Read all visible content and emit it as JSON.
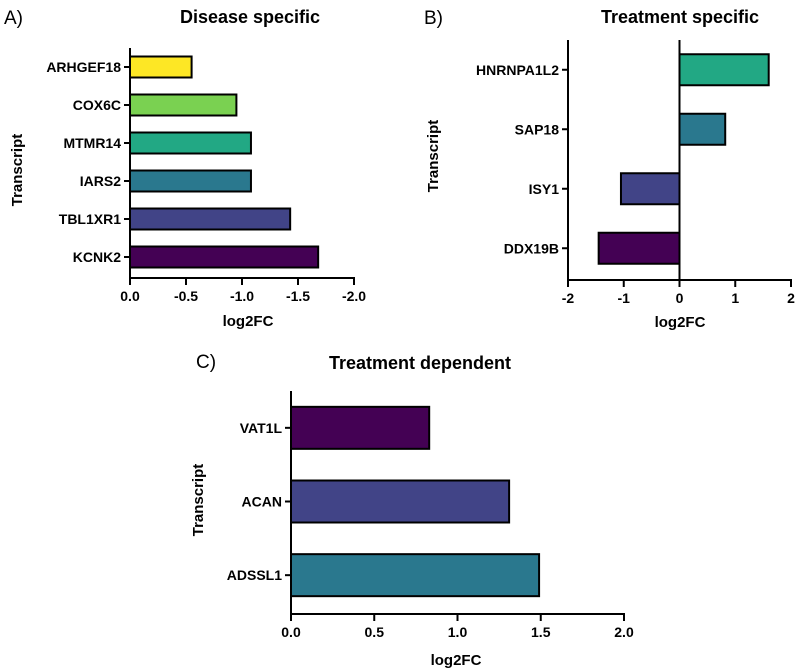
{
  "chart_data": [
    {
      "panel": "A)",
      "type": "bar",
      "orientation": "horizontal",
      "title": "Disease specific",
      "xlabel": "log2FC",
      "ylabel": "Transcript",
      "categories": [
        "ARHGEF18",
        "COX6C",
        "MTMR14",
        "IARS2",
        "TBL1XR1",
        "KCNK2"
      ],
      "values": [
        -0.55,
        -0.95,
        -1.08,
        -1.08,
        -1.43,
        -1.68
      ],
      "colors": [
        "#fde725",
        "#7ad151",
        "#22a884",
        "#2a788e",
        "#414487",
        "#440154"
      ],
      "xlim": [
        0.0,
        -2.0
      ],
      "xticks": [
        0.0,
        -0.5,
        -1.0,
        -1.5,
        -2.0
      ],
      "xtick_labels": [
        "0.0",
        "-0.5",
        "-1.0",
        "-1.5",
        "-2.0"
      ]
    },
    {
      "panel": "B)",
      "type": "bar",
      "orientation": "horizontal",
      "title": "Treatment specific",
      "xlabel": "log2FC",
      "ylabel": "Transcript",
      "categories": [
        "HNRNPA1L2",
        "SAP18",
        "ISY1",
        "DDX19B"
      ],
      "values": [
        1.6,
        0.82,
        -1.05,
        -1.45
      ],
      "colors": [
        "#22a884",
        "#2a788e",
        "#414487",
        "#440154"
      ],
      "xlim": [
        -2,
        2
      ],
      "xticks": [
        -2,
        -1,
        0,
        1,
        2
      ],
      "xtick_labels": [
        "-2",
        "-1",
        "0",
        "1",
        "2"
      ]
    },
    {
      "panel": "C)",
      "type": "bar",
      "orientation": "horizontal",
      "title": "Treatment dependent",
      "xlabel": "log2FC",
      "ylabel": "Transcript",
      "categories": [
        "VAT1L",
        "ACAN",
        "ADSSL1"
      ],
      "values": [
        0.83,
        1.31,
        1.49
      ],
      "colors": [
        "#440154",
        "#414487",
        "#2a788e"
      ],
      "xlim": [
        0.0,
        2.0
      ],
      "xticks": [
        0.0,
        0.5,
        1.0,
        1.5,
        2.0
      ],
      "xtick_labels": [
        "0.0",
        "0.5",
        "1.0",
        "1.5",
        "2.0"
      ]
    }
  ]
}
